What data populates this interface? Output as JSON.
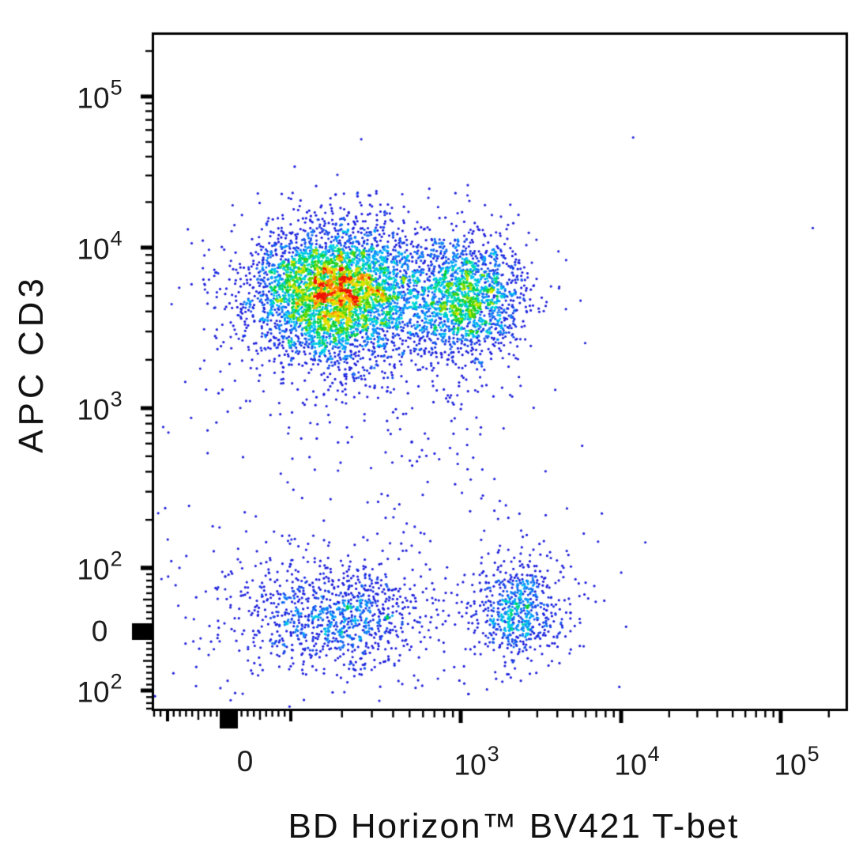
{
  "chart_data": {
    "type": "scatter",
    "subtype": "flow-cytometry-pseudocolor-density-dot-plot",
    "title": "",
    "xlabel": "BD Horizon™ BV421 T-bet",
    "ylabel": "APC CD3",
    "x_axis": {
      "scale": "biexponential",
      "range": [
        -200,
        262000
      ],
      "tick_labels": [
        {
          "value": 0,
          "base": "0",
          "sup": ""
        },
        {
          "value": 1000,
          "base": "10",
          "sup": "3"
        },
        {
          "value": 10000,
          "base": "10",
          "sup": "4"
        },
        {
          "value": 100000,
          "base": "10",
          "sup": "5"
        }
      ]
    },
    "y_axis": {
      "scale": "biexponential",
      "range": [
        -160,
        550000
      ],
      "tick_labels": [
        {
          "value": 100000,
          "base": "10",
          "sup": "5"
        },
        {
          "value": 10000,
          "base": "10",
          "sup": "4"
        },
        {
          "value": 1000,
          "base": "10",
          "sup": "3"
        },
        {
          "value": 100,
          "base": "10",
          "sup": "2"
        },
        {
          "value": 0,
          "base": "0",
          "sup": ""
        },
        {
          "value": -100,
          "base": "10",
          "sup": "2"
        }
      ]
    },
    "grid": false,
    "legend": false,
    "clusters": [
      {
        "name": "cd3-pos-tbet-low-main",
        "n": 3900,
        "x": {
          "center": 190,
          "sigma_decades": 0.26
        },
        "y": {
          "center": 5300,
          "sigma_decades": 0.21
        }
      },
      {
        "name": "cd3-pos-tbet-mid-lobe",
        "n": 1500,
        "x": {
          "center": 1100,
          "sigma_decades": 0.17
        },
        "y": {
          "center": 4900,
          "sigma_decades": 0.19
        }
      },
      {
        "name": "cd3-pos-halo",
        "n": 650,
        "x": {
          "lo": -60,
          "hi": 2600
        },
        "y": {
          "lo": 700,
          "hi": 22000
        }
      },
      {
        "name": "cd3-neg-tbet-low",
        "n": 820,
        "x": {
          "center": 200,
          "sigma_decades": 0.27
        },
        "y": {
          "lo": -60,
          "hi": 100
        }
      },
      {
        "name": "cd3-neg-tbet-low-halo",
        "n": 300,
        "x": {
          "lo": -130,
          "hi": 850
        },
        "y": {
          "lo": -110,
          "hi": 230
        }
      },
      {
        "name": "cd3-neg-tbet-pos",
        "n": 560,
        "x": {
          "center": 2250,
          "sigma_decades": 0.13
        },
        "y": {
          "lo": -50,
          "hi": 110
        }
      },
      {
        "name": "cd3-neg-tbet-pos-halo",
        "n": 140,
        "x": {
          "center": 2250,
          "sigma_decades": 0.27
        },
        "y": {
          "lo": -100,
          "hi": 200
        }
      },
      {
        "name": "bridge-sparse",
        "n": 40,
        "x": {
          "lo": 350,
          "hi": 2100
        },
        "y": {
          "lo": 160,
          "hi": 2600
        }
      },
      {
        "name": "scattered-outliers",
        "n": 60,
        "x": {
          "lo": -160,
          "hi": 30000
        },
        "y": {
          "lo": -120,
          "hi": 60000
        }
      }
    ],
    "density_colormap": [
      {
        "t": 0.0,
        "c": "#2121dc"
      },
      {
        "t": 0.16,
        "c": "#2121dc"
      },
      {
        "t": 0.28,
        "c": "#1b6ef5"
      },
      {
        "t": 0.38,
        "c": "#00b4ff"
      },
      {
        "t": 0.47,
        "c": "#00e2d2"
      },
      {
        "t": 0.56,
        "c": "#00cf3f"
      },
      {
        "t": 0.65,
        "c": "#53d400"
      },
      {
        "t": 0.74,
        "c": "#c3e800"
      },
      {
        "t": 0.82,
        "c": "#ffe000"
      },
      {
        "t": 0.89,
        "c": "#ffa000"
      },
      {
        "t": 0.95,
        "c": "#ff5500"
      },
      {
        "t": 1.0,
        "c": "#ee1500"
      }
    ],
    "frame_color": "#000000",
    "background_color": "#ffffff"
  }
}
